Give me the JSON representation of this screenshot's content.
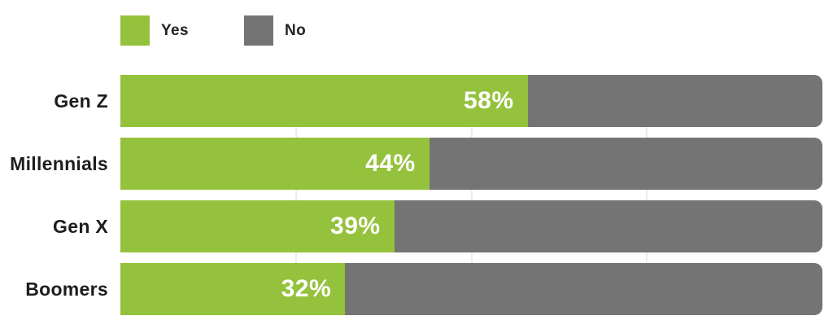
{
  "legend": {
    "items": [
      {
        "label": "Yes",
        "color": "#95C23D"
      },
      {
        "label": "No",
        "color": "#747474"
      }
    ]
  },
  "chart_data": {
    "type": "bar",
    "orientation": "horizontal",
    "stacked": true,
    "title": "",
    "categories": [
      "Gen Z",
      "Millennials",
      "Gen X",
      "Boomers"
    ],
    "series": [
      {
        "name": "Yes",
        "color": "#95C23D",
        "values": [
          58,
          44,
          39,
          32
        ]
      },
      {
        "name": "No",
        "color": "#747474",
        "values": [
          42,
          56,
          61,
          68
        ]
      }
    ],
    "value_labels": [
      "58%",
      "44%",
      "39%",
      "32%"
    ],
    "xlim": [
      0,
      100
    ],
    "gridlines": {
      "positions_pct": [
        25,
        50,
        75
      ],
      "color": "#ececec",
      "visible_in_gaps_only": true
    },
    "legend_position": "top-left",
    "bar_label_color": "#ffffff",
    "category_label_color": "#1d1d1d",
    "background_color": "#ffffff"
  }
}
